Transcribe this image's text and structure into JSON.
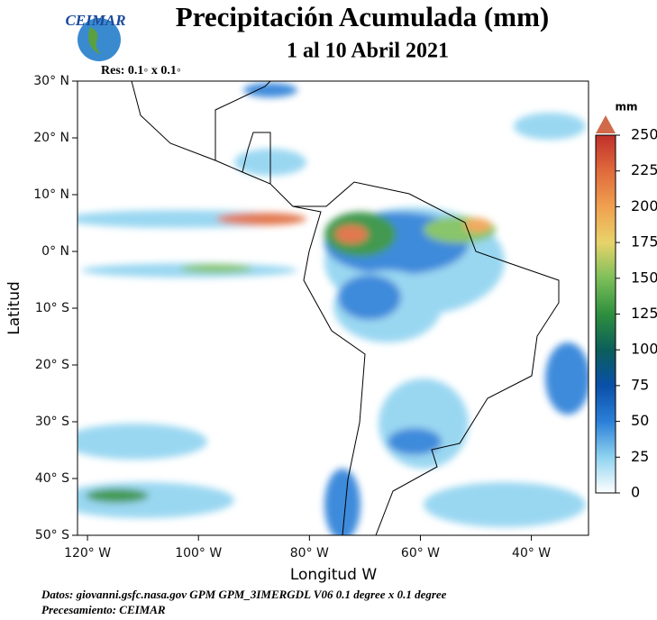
{
  "logo": "CEIMAR",
  "title": "Precipitación Acumulada (mm)",
  "subtitle": "1 al 10 Abril 2021",
  "resolution": "Res: 0.1◦ x 0.1◦",
  "map": {
    "latlim": [
      -50,
      30
    ],
    "lonlim": [
      -121.8,
      -29.7
    ],
    "yticks": [
      {
        "value": 30,
        "label": "30° N"
      },
      {
        "value": 20,
        "label": "20° N"
      },
      {
        "value": 10,
        "label": "10° N"
      },
      {
        "value": 0,
        "label": "0° N"
      },
      {
        "value": -10,
        "label": "10° S"
      },
      {
        "value": -20,
        "label": "20° S"
      },
      {
        "value": -30,
        "label": "30° S"
      },
      {
        "value": -40,
        "label": "40° S"
      },
      {
        "value": -50,
        "label": "50° S"
      }
    ],
    "xticks": [
      {
        "value": -120,
        "label": "120° W"
      },
      {
        "value": -100,
        "label": "100° W"
      },
      {
        "value": -80,
        "label": "80° W"
      },
      {
        "value": -60,
        "label": "60° W"
      },
      {
        "value": -40,
        "label": "40° W"
      }
    ],
    "xlabel": "Longitud W",
    "ylabel": "Latitud"
  },
  "colorbar": {
    "unit": "mm",
    "ticks": [
      0,
      25,
      50,
      75,
      100,
      125,
      150,
      175,
      200,
      225,
      250
    ],
    "colors": [
      "#ffffff",
      "#8fd3f0",
      "#2b7fd8",
      "#0a4fa8",
      "#0b5e5a",
      "#2e8f3e",
      "#7dbf5a",
      "#e8d36a",
      "#f0a050",
      "#e06a3c",
      "#c0302a"
    ]
  },
  "footer": {
    "source": "Datos: giovanni.gsfc.nasa.gov  GPM GPM_3IMERGDL V06  0.1 degree x 0.1 degree",
    "processing": "Precesamiento: CEIMAR"
  }
}
